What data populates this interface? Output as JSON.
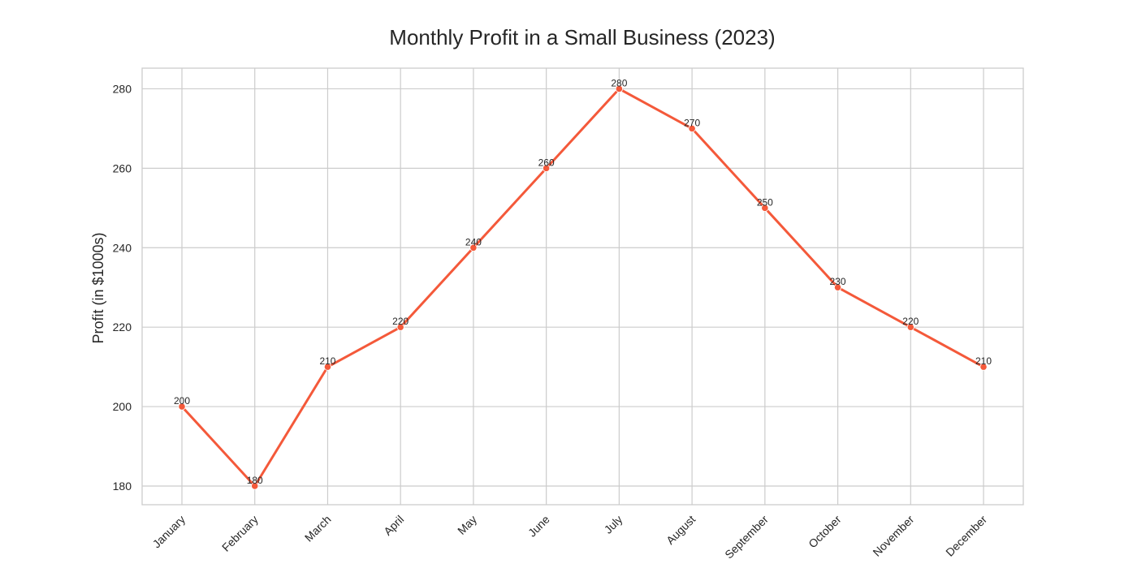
{
  "chart_data": {
    "type": "line",
    "title": "Monthly Profit in a Small Business (2023)",
    "xlabel": "",
    "ylabel": "Profit (in $1000s)",
    "categories": [
      "January",
      "February",
      "March",
      "April",
      "May",
      "June",
      "July",
      "August",
      "September",
      "October",
      "November",
      "December"
    ],
    "series": [
      {
        "values": [
          200,
          180,
          210,
          220,
          240,
          260,
          280,
          270,
          250,
          230,
          220,
          210
        ],
        "color": "#f4593a"
      }
    ],
    "yticks": [
      180,
      200,
      220,
      240,
      260,
      280
    ],
    "ylim": [
      175.3,
      285.2
    ],
    "grid": true,
    "data_labels": true,
    "x_tick_rotation": -45,
    "grid_color": "#cccccc",
    "text_color": "#262626"
  }
}
